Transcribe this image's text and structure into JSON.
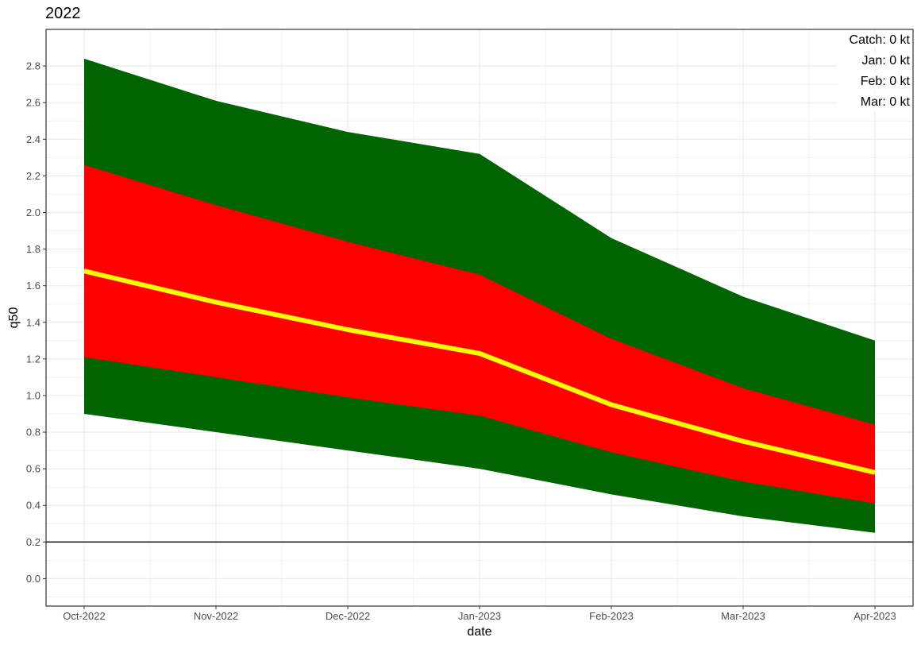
{
  "chart_data": {
    "type": "area",
    "title": "2022",
    "xlabel": "date",
    "ylabel": "q50",
    "x": [
      "Oct-2022",
      "Nov-2022",
      "Dec-2022",
      "Jan-2023",
      "Feb-2023",
      "Mar-2023",
      "Apr-2023"
    ],
    "ylim": [
      -0.15,
      3.0
    ],
    "y_ticks": [
      0.0,
      0.2,
      0.4,
      0.6,
      0.8,
      1.0,
      1.2,
      1.4,
      1.6,
      1.8,
      2.0,
      2.2,
      2.4,
      2.6,
      2.8
    ],
    "y_tick_labels": [
      "0.0",
      "0.2",
      "0.4",
      "0.6",
      "0.8",
      "1.0",
      "1.2",
      "1.4",
      "1.6",
      "1.8",
      "2.0",
      "2.2",
      "2.4",
      "2.6",
      "2.8"
    ],
    "grid": true,
    "series": [
      {
        "role": "outer_band",
        "color": "#006400",
        "lower": [
          0.9,
          0.8,
          0.7,
          0.6,
          0.46,
          0.34,
          0.25
        ],
        "upper": [
          2.84,
          2.61,
          2.44,
          2.32,
          1.86,
          1.54,
          1.3
        ]
      },
      {
        "role": "inner_band",
        "color": "#ff0000",
        "lower": [
          1.21,
          1.1,
          0.99,
          0.89,
          0.69,
          0.53,
          0.41
        ],
        "upper": [
          2.26,
          2.04,
          1.84,
          1.66,
          1.31,
          1.04,
          0.84
        ]
      },
      {
        "role": "median_line",
        "color": "#ffff00",
        "values": [
          1.68,
          1.51,
          1.36,
          1.23,
          0.95,
          0.75,
          0.58
        ]
      }
    ],
    "reference_line": {
      "y": 0.2,
      "color": "#000000"
    },
    "annotations": [
      "Catch: 0 kt",
      "Jan: 0 kt",
      "Feb: 0 kt",
      "Mar: 0 kt"
    ]
  }
}
